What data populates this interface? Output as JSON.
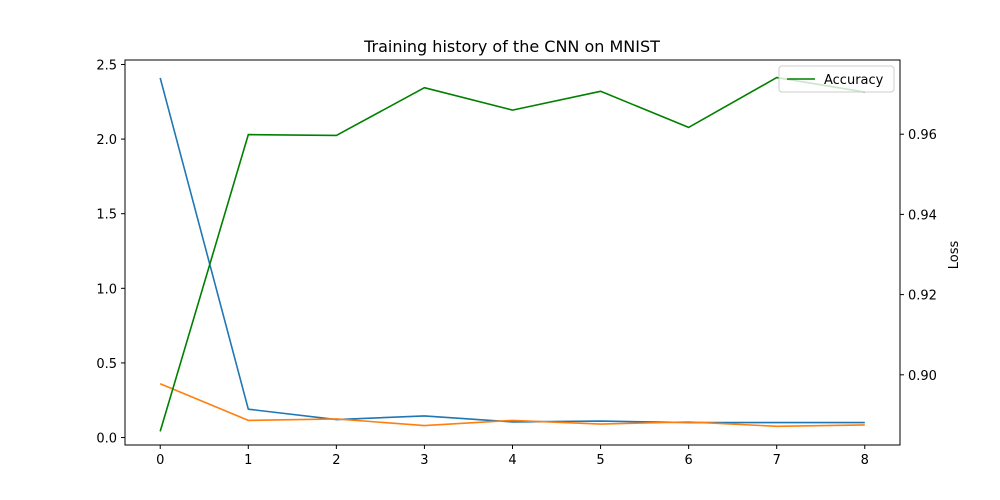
{
  "chart_data": {
    "type": "line",
    "title": "Training history of the CNN on MNIST",
    "x": [
      0,
      1,
      2,
      3,
      4,
      5,
      6,
      7,
      8
    ],
    "xlim": [
      -0.4,
      8.4
    ],
    "left_axis": {
      "ylim": [
        -0.05,
        2.53
      ],
      "ticks": [
        0.0,
        0.5,
        1.0,
        1.5,
        2.0,
        2.5
      ],
      "tick_labels": [
        "0.0",
        "0.5",
        "1.0",
        "1.5",
        "2.0",
        "2.5"
      ]
    },
    "right_axis": {
      "ylabel": "Loss",
      "ylim": [
        0.8825,
        0.9785
      ],
      "ticks": [
        0.9,
        0.92,
        0.94,
        0.96
      ],
      "tick_labels": [
        "0.90",
        "0.92",
        "0.94",
        "0.96"
      ]
    },
    "series": [
      {
        "axis": "left",
        "color": "#1f77b4",
        "values": [
          2.41,
          0.19,
          0.12,
          0.145,
          0.105,
          0.11,
          0.1,
          0.1,
          0.1
        ]
      },
      {
        "axis": "left",
        "color": "#ff7f0e",
        "values": [
          0.36,
          0.115,
          0.125,
          0.08,
          0.115,
          0.09,
          0.105,
          0.075,
          0.085
        ]
      },
      {
        "name": "Accuracy",
        "axis": "right",
        "color": "#008000",
        "values": [
          0.8859,
          0.9599,
          0.9597,
          0.9716,
          0.966,
          0.9707,
          0.9617,
          0.9741,
          0.9705
        ]
      }
    ],
    "legend": {
      "position": "top-right",
      "entries": [
        "Accuracy"
      ]
    },
    "grid": false
  }
}
